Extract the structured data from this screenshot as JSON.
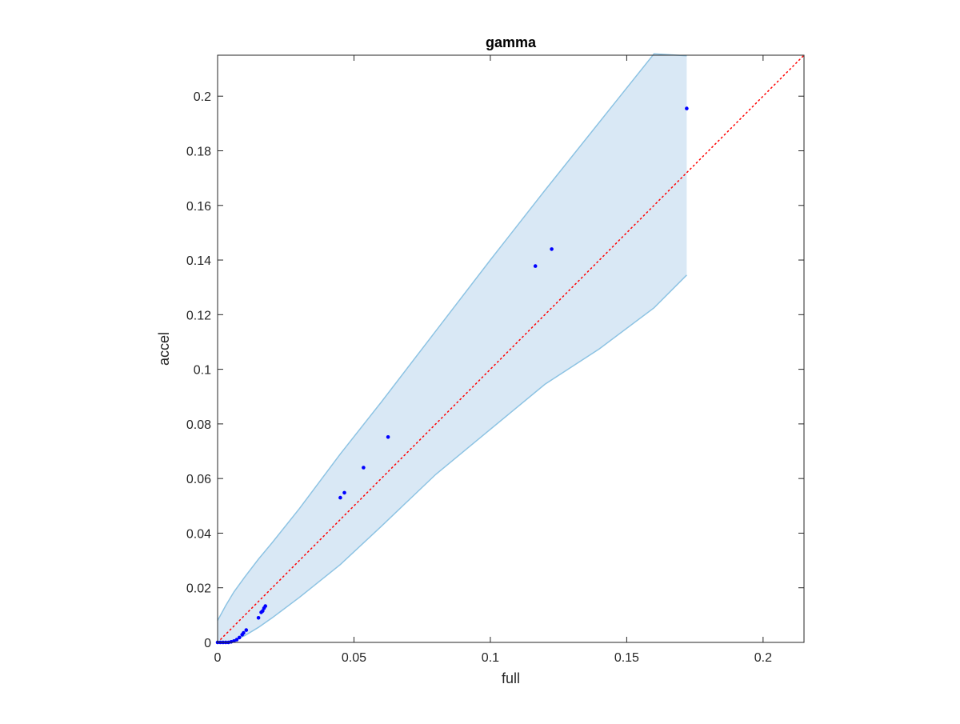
{
  "chart_data": {
    "type": "scatter",
    "title": "gamma",
    "xlabel": "full",
    "ylabel": "accel",
    "xlim": [
      0,
      0.215
    ],
    "ylim": [
      0,
      0.215
    ],
    "xticks": [
      0,
      0.05,
      0.1,
      0.15,
      0.2
    ],
    "xtick_labels": [
      "0",
      "0.05",
      "0.1",
      "0.15",
      "0.2"
    ],
    "yticks": [
      0,
      0.02,
      0.04,
      0.06,
      0.08,
      0.1,
      0.12,
      0.14,
      0.16,
      0.18,
      0.2
    ],
    "ytick_labels": [
      "0",
      "0.02",
      "0.04",
      "0.06",
      "0.08",
      "0.1",
      "0.12",
      "0.14",
      "0.16",
      "0.18",
      "0.2"
    ],
    "grid": false,
    "box": true,
    "points": {
      "x": [
        0.0,
        0.001,
        0.002,
        0.003,
        0.004,
        0.005,
        0.006,
        0.007,
        0.008,
        0.009,
        0.0095,
        0.0105,
        0.015,
        0.016,
        0.0165,
        0.017,
        0.0175,
        0.045,
        0.0465,
        0.0535,
        0.0625,
        0.1165,
        0.1225,
        0.172
      ],
      "y": [
        0.0,
        0.0,
        0.0,
        0.0,
        0.0,
        0.0002,
        0.0005,
        0.001,
        0.0018,
        0.0028,
        0.0035,
        0.0045,
        0.009,
        0.011,
        0.0115,
        0.0125,
        0.0133,
        0.053,
        0.0548,
        0.064,
        0.0752,
        0.1378,
        0.144,
        0.1955
      ],
      "color": "#0000ff"
    },
    "band": {
      "x": [
        0.0,
        0.003,
        0.006,
        0.01,
        0.015,
        0.02,
        0.03,
        0.045,
        0.06,
        0.08,
        0.1,
        0.12,
        0.14,
        0.16,
        0.172
      ],
      "upper": [
        0.008,
        0.0135,
        0.0185,
        0.024,
        0.0305,
        0.0365,
        0.049,
        0.069,
        0.088,
        0.114,
        0.14,
        0.1655,
        0.1905,
        0.2155,
        0.2148
      ],
      "lower": [
        0.0,
        0.0,
        0.0008,
        0.0025,
        0.0055,
        0.009,
        0.0165,
        0.0285,
        0.0425,
        0.0615,
        0.078,
        0.0945,
        0.1075,
        0.1225,
        0.1345
      ],
      "fill_color": "#d9e8f5",
      "edge_color": "#8dc3e3"
    },
    "reference_line": {
      "x": [
        0,
        0.215
      ],
      "y": [
        0,
        0.215
      ],
      "style": "dotted",
      "color": "#ff0000"
    }
  }
}
